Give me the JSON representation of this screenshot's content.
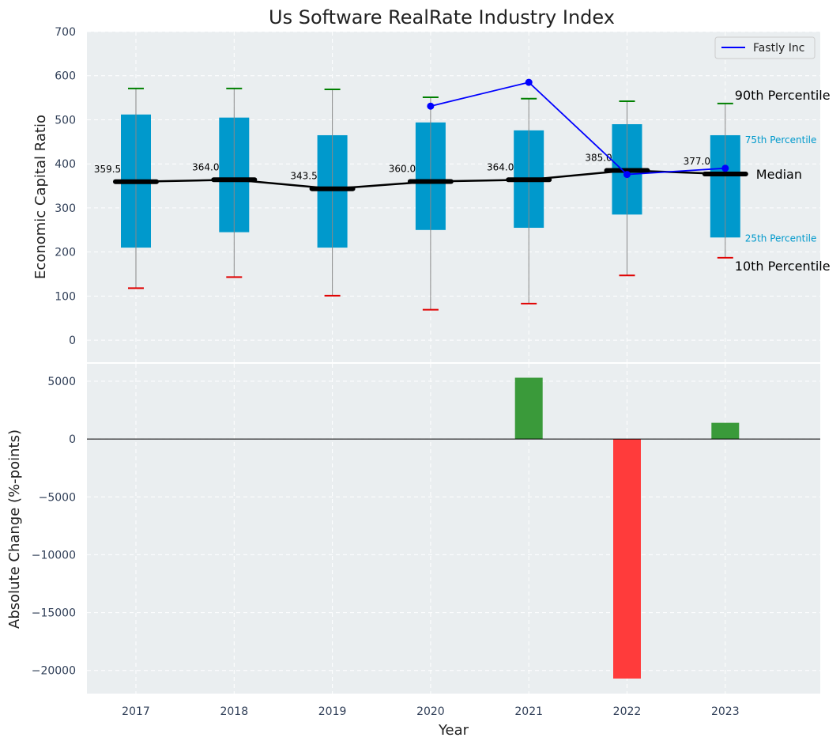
{
  "chart_data": [
    {
      "type": "box",
      "title": "Us Software RealRate Industry Index",
      "ylabel": "Economic Capital Ratio",
      "ylim": [
        -50,
        700
      ],
      "yticks": [
        0,
        100,
        200,
        300,
        400,
        500,
        600,
        700
      ],
      "categories": [
        "2017",
        "2018",
        "2019",
        "2020",
        "2021",
        "2022",
        "2023"
      ],
      "p10": [
        118,
        143,
        101,
        69,
        83,
        147,
        187
      ],
      "p25": [
        210,
        245,
        210,
        250,
        255,
        285,
        233
      ],
      "median": [
        359.5,
        364.0,
        343.5,
        360.0,
        364.0,
        385.0,
        377.0
      ],
      "median_labels": [
        "359.5",
        "364.0",
        "343.5",
        "360.0",
        "364.0",
        "385.0",
        "377.0"
      ],
      "p75": [
        512,
        505,
        465,
        494,
        476,
        490,
        465
      ],
      "p90": [
        571,
        571,
        569,
        551,
        548,
        542,
        537
      ],
      "series": [
        {
          "name": "Fastly Inc",
          "x": [
            "2020",
            "2021",
            "2022",
            "2023"
          ],
          "values": [
            531,
            585,
            376,
            390
          ]
        }
      ],
      "annotations": {
        "p90": "90th Percentile",
        "p75": "75th Percentile",
        "median": "Median",
        "p25": "25th Percentile",
        "p10": "10th Percentile"
      },
      "grid": true,
      "legend": "top-right",
      "colors": {
        "box": "#0099cc",
        "median": "#000000",
        "series": "#0000ff",
        "p90_cap": "#008000",
        "p10_cap": "#e00000",
        "whisker": "#888888",
        "background": "#eaeef0"
      }
    },
    {
      "type": "bar",
      "xlabel": "Year",
      "ylabel": "Absolute Change (%-points)",
      "ylim": [
        -22000,
        6500
      ],
      "yticks": [
        5000,
        0,
        -5000,
        -10000,
        -15000,
        -20000
      ],
      "ytick_labels": [
        "5000",
        "0",
        "−5000",
        "−10000",
        "−15000",
        "−20000"
      ],
      "categories": [
        "2017",
        "2018",
        "2019",
        "2020",
        "2021",
        "2022",
        "2023"
      ],
      "values": [
        0,
        0,
        0,
        0,
        5300,
        -20700,
        1400
      ],
      "grid": true,
      "colors": {
        "positive": "#3a9a3a",
        "negative": "#ff3b3b",
        "zero_line": "#000000"
      }
    }
  ]
}
